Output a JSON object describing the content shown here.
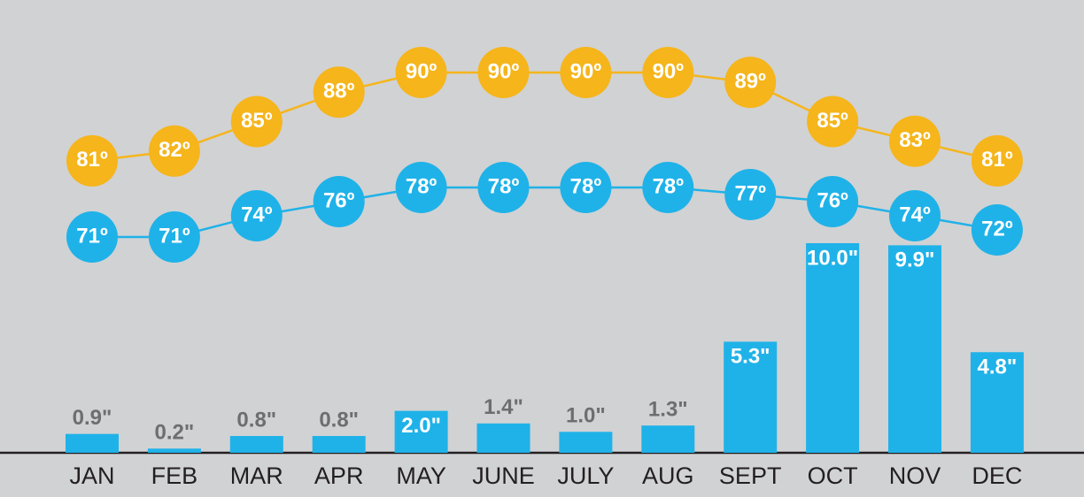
{
  "chart_data": {
    "type": "combo",
    "categories": [
      "JAN",
      "FEB",
      "MAR",
      "APR",
      "MAY",
      "JUNE",
      "JULY",
      "AUG",
      "SEPT",
      "OCT",
      "NOV",
      "DEC"
    ],
    "series": [
      {
        "type": "bar",
        "color": "#1fb2e8",
        "values": [
          0.9,
          0.2,
          0.8,
          0.8,
          2.0,
          1.4,
          1.0,
          1.3,
          5.3,
          10.0,
          9.9,
          4.8
        ],
        "value_labels": [
          "0.9\"",
          "0.2\"",
          "0.8\"",
          "0.8\"",
          "2.0\"",
          "1.4\"",
          "1.0\"",
          "1.3\"",
          "5.3\"",
          "10.0\"",
          "9.9\"",
          "4.8\""
        ]
      },
      {
        "type": "line",
        "color": "#f5b51b",
        "values": [
          81,
          82,
          85,
          88,
          90,
          90,
          90,
          90,
          89,
          85,
          83,
          81
        ],
        "value_labels": [
          "81º",
          "82º",
          "85º",
          "88º",
          "90º",
          "90º",
          "90º",
          "90º",
          "89º",
          "85º",
          "83º",
          "81º"
        ]
      },
      {
        "type": "line",
        "color": "#1fb2e8",
        "values": [
          71,
          71,
          74,
          76,
          78,
          78,
          78,
          78,
          77,
          76,
          74,
          72
        ],
        "value_labels": [
          "71º",
          "71º",
          "74º",
          "76º",
          "78º",
          "78º",
          "78º",
          "78º",
          "77º",
          "76º",
          "74º",
          "72º"
        ]
      }
    ]
  }
}
